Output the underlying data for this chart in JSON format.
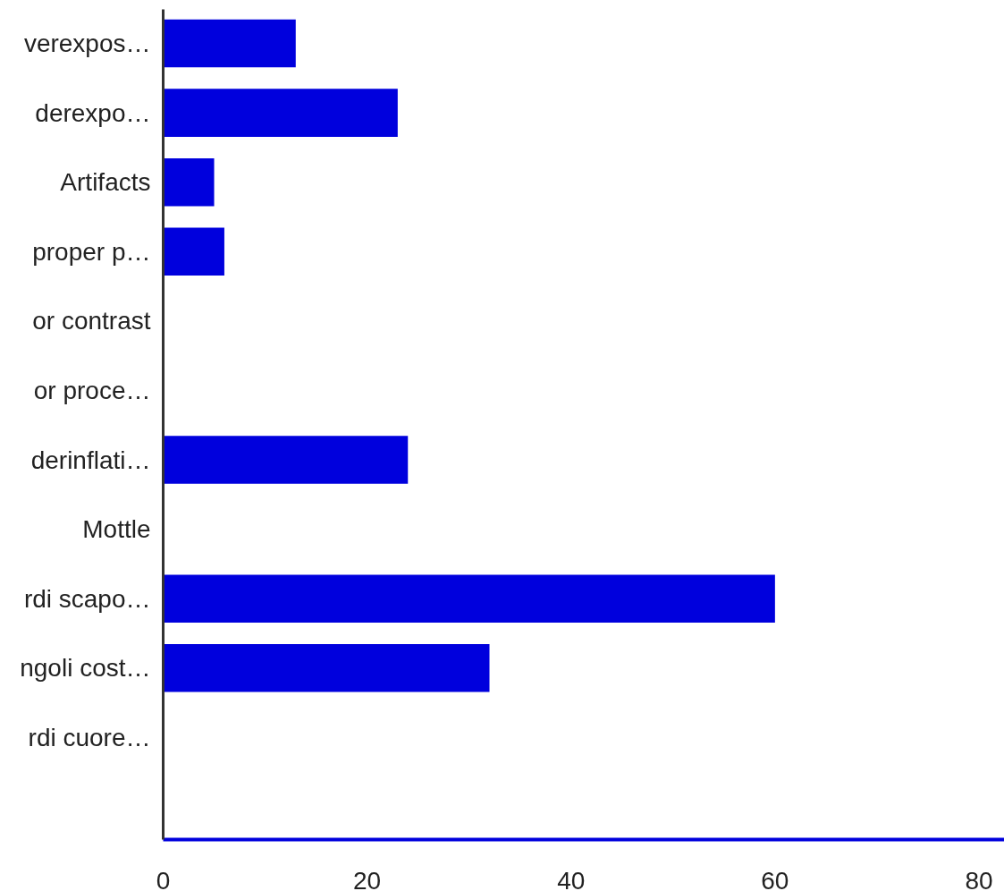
{
  "chart_data": {
    "type": "bar",
    "orientation": "horizontal",
    "categories": [
      "verexpos…",
      "derexpo…",
      "Artifacts",
      "proper p…",
      "or contrast",
      "or proce…",
      "derinflati…",
      "Mottle",
      "rdi scapo…",
      "ngoli cost…",
      "rdi cuore…",
      null
    ],
    "values": [
      13,
      23,
      5,
      6,
      0,
      0,
      24,
      0,
      60,
      32,
      0,
      null
    ],
    "color": "#0000dd",
    "xlim": [
      0,
      82.5
    ],
    "xticks": [
      0,
      20,
      40,
      60,
      80
    ],
    "grid": false
  }
}
